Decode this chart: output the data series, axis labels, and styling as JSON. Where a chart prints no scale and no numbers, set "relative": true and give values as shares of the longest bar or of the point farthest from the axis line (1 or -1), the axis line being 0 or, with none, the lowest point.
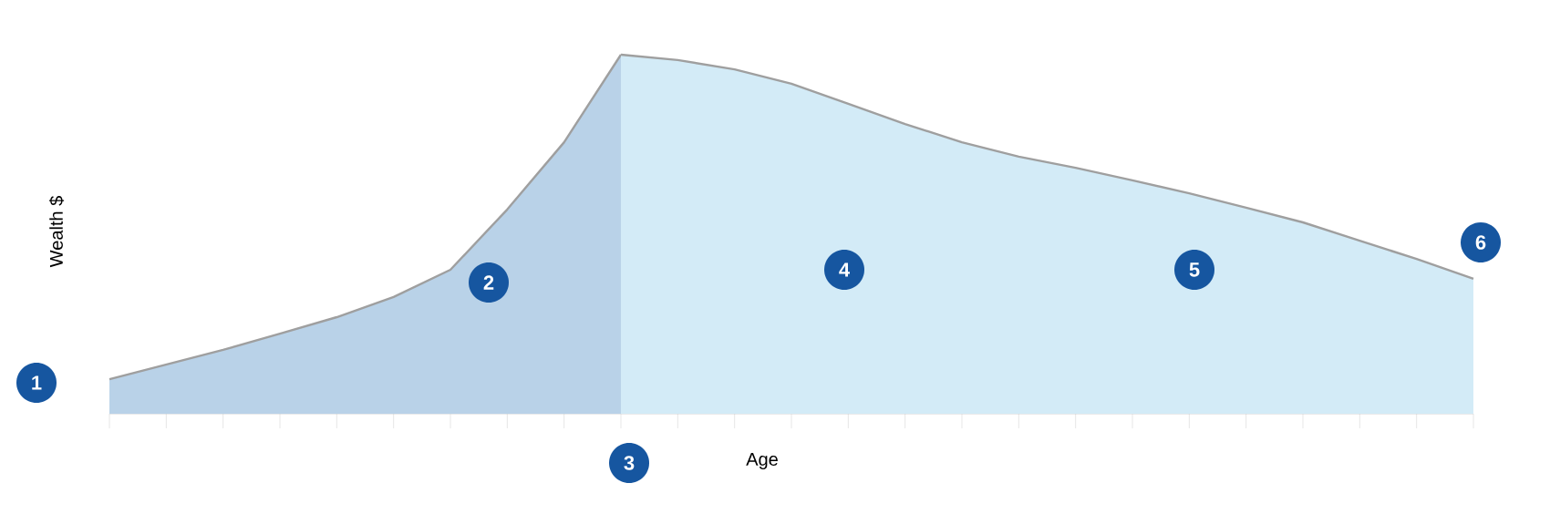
{
  "chart_data": {
    "type": "area",
    "relative": true,
    "xlabel": "Age",
    "ylabel": "Wealth $",
    "categories": [
      null,
      null,
      null,
      null,
      null,
      null,
      null,
      null,
      null,
      null,
      null,
      null,
      null,
      null,
      null,
      null,
      null,
      null,
      null,
      null,
      null,
      null,
      null,
      null,
      null
    ],
    "series": [
      {
        "color": "#b9d2e8",
        "values": [
          0.096,
          0.137,
          0.178,
          0.223,
          0.269,
          0.325,
          0.401,
          0.569,
          0.756,
          1,
          null,
          null,
          null,
          null,
          null,
          null,
          null,
          null,
          null,
          null,
          null,
          null,
          null,
          null,
          null
        ]
      },
      {
        "color": "#d3ebf7",
        "values": [
          null,
          null,
          null,
          null,
          null,
          null,
          null,
          null,
          null,
          1,
          0.985,
          0.959,
          0.919,
          0.863,
          0.807,
          0.756,
          0.716,
          0.685,
          0.65,
          0.614,
          0.574,
          0.533,
          0.482,
          0.431,
          0.376
        ]
      }
    ],
    "annotations": [
      "1",
      "2",
      "3",
      "4",
      "5",
      "6"
    ]
  }
}
